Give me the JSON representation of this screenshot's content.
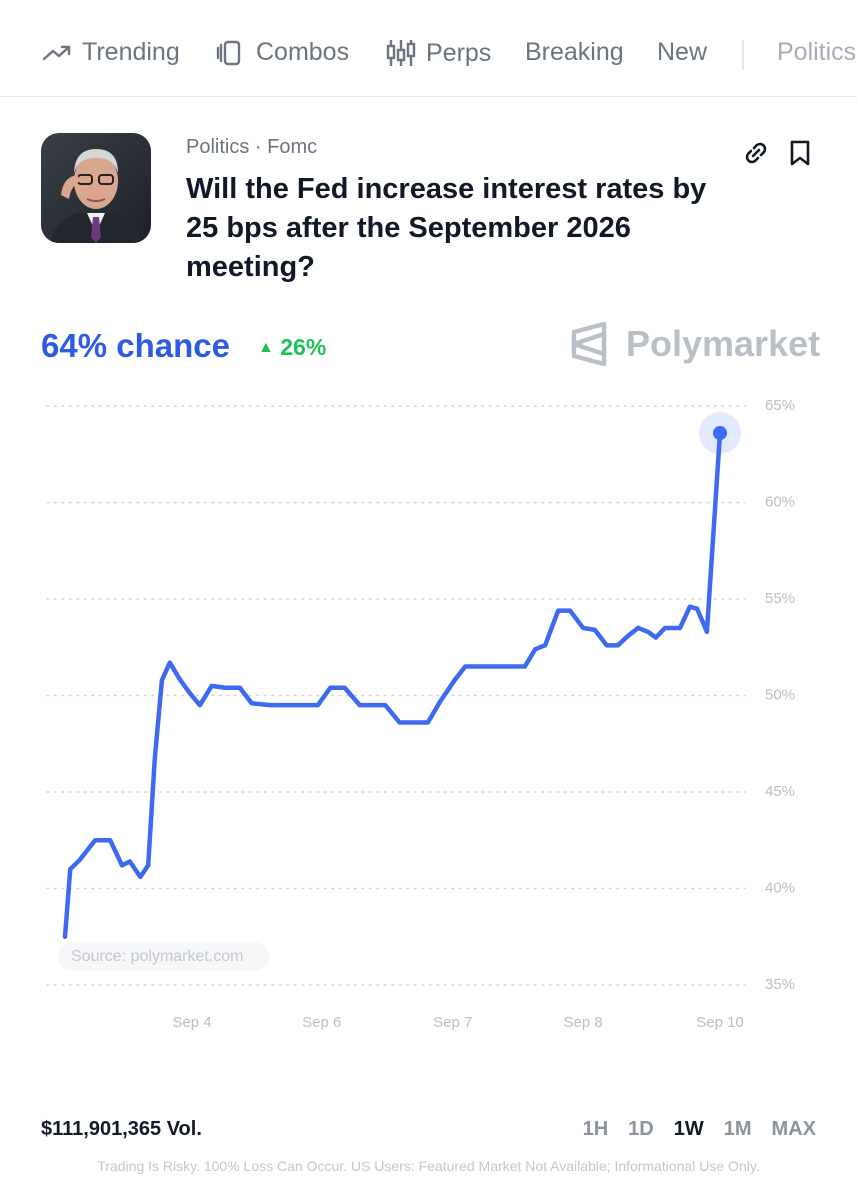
{
  "nav": {
    "items": [
      "Trending",
      "Combos",
      "Perps",
      "Breaking",
      "New",
      "Politics"
    ]
  },
  "market": {
    "category": "Politics · Fomc",
    "question": "Will the Fed increase interest rates by 25 bps after the September 2026 meeting?",
    "chance": "64% chance",
    "change": "26%",
    "brand": "Polymarket"
  },
  "chart_data": {
    "type": "line",
    "source": "Source: polymarket.com",
    "ylim": [
      35,
      65
    ],
    "yticks": [
      {
        "value": 35,
        "label": "35%"
      },
      {
        "value": 40,
        "label": "40%"
      },
      {
        "value": 45,
        "label": "45%"
      },
      {
        "value": 50,
        "label": "50%"
      },
      {
        "value": 55,
        "label": "55%"
      },
      {
        "value": 60,
        "label": "60%"
      },
      {
        "value": 65,
        "label": "65%"
      }
    ],
    "xlim": [
      0,
      100
    ],
    "xticks": [
      {
        "value": 19.4,
        "label": "Sep 4"
      },
      {
        "value": 39.2,
        "label": "Sep 6"
      },
      {
        "value": 59.2,
        "label": "Sep 7"
      },
      {
        "value": 79.1,
        "label": "Sep 8"
      },
      {
        "value": 100,
        "label": "Sep 10"
      }
    ],
    "grid": true,
    "series": [
      {
        "color": "#3d6af0",
        "x": [
          0,
          0.8,
          2.3,
          4.6,
          6.9,
          8.7,
          9.9,
          11.5,
          12.7,
          13.7,
          14.8,
          16.0,
          17.6,
          19.1,
          20.6,
          22.4,
          24.4,
          26.7,
          28.5,
          31.3,
          35.9,
          38.6,
          40.5,
          42.7,
          45.0,
          48.9,
          51.1,
          55.4,
          57.3,
          59.5,
          61.1,
          64.9,
          70.2,
          71.8,
          73.3,
          75.3,
          77.1,
          79.1,
          80.9,
          82.7,
          84.4,
          86.0,
          87.5,
          89.0,
          90.2,
          91.6,
          93.9,
          95.4,
          96.5,
          98.0,
          100
        ],
        "values": [
          37.5,
          41.0,
          41.5,
          42.5,
          42.5,
          41.2,
          41.4,
          40.6,
          41.2,
          46.7,
          50.8,
          51.7,
          50.8,
          50.1,
          49.5,
          50.5,
          50.4,
          50.4,
          49.6,
          49.5,
          49.5,
          49.5,
          50.4,
          50.4,
          49.5,
          49.5,
          48.6,
          48.6,
          49.7,
          50.8,
          51.5,
          51.5,
          51.5,
          52.4,
          52.6,
          54.4,
          54.4,
          53.5,
          53.4,
          52.6,
          52.6,
          53.1,
          53.5,
          53.3,
          53.0,
          53.5,
          53.5,
          54.6,
          54.5,
          53.3,
          63.6
        ]
      }
    ]
  },
  "footer": {
    "volume": "$111,901,365 Vol.",
    "ranges": [
      "1H",
      "1D",
      "1W",
      "1M",
      "MAX"
    ],
    "active_range": "1W",
    "disclaimer": "Trading Is Risky. 100% Loss Can Occur. US Users: Featured Market Not Available; Informational Use Only."
  }
}
